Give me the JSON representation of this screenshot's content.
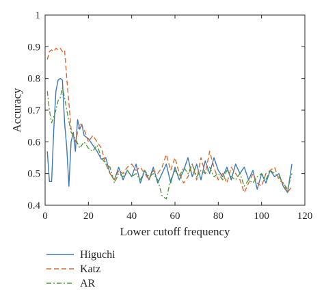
{
  "chart_data": {
    "type": "line",
    "xlabel": "Lower cutoff frequency",
    "ylabel": "Accuracy",
    "xlim": [
      0,
      120
    ],
    "ylim": [
      0.4,
      1.0
    ],
    "xticks": [
      "0",
      "20",
      "40",
      "60",
      "80",
      "100",
      "120"
    ],
    "yticks": [
      "0.4",
      "0.5",
      "0.6",
      "0.7",
      "0.8",
      "0.9",
      "1"
    ],
    "grid": false,
    "legend_position": "below",
    "series": [
      {
        "name": "Higuchi",
        "color": "#3a78b8",
        "style": "solid",
        "points": [
          [
            1,
            0.57
          ],
          [
            2,
            0.475
          ],
          [
            3,
            0.475
          ],
          [
            4,
            0.64
          ],
          [
            5,
            0.76
          ],
          [
            6,
            0.795
          ],
          [
            7,
            0.8
          ],
          [
            8,
            0.795
          ],
          [
            9,
            0.66
          ],
          [
            10,
            0.58
          ],
          [
            11,
            0.46
          ],
          [
            12,
            0.6
          ],
          [
            13,
            0.63
          ],
          [
            14,
            0.57
          ],
          [
            15,
            0.67
          ],
          [
            16,
            0.64
          ],
          [
            17,
            0.655
          ],
          [
            18,
            0.62
          ],
          [
            20,
            0.61
          ],
          [
            22,
            0.59
          ],
          [
            24,
            0.57
          ],
          [
            26,
            0.545
          ],
          [
            28,
            0.55
          ],
          [
            30,
            0.5
          ],
          [
            32,
            0.48
          ],
          [
            34,
            0.52
          ],
          [
            36,
            0.48
          ],
          [
            38,
            0.51
          ],
          [
            40,
            0.49
          ],
          [
            42,
            0.53
          ],
          [
            44,
            0.47
          ],
          [
            46,
            0.51
          ],
          [
            48,
            0.48
          ],
          [
            50,
            0.52
          ],
          [
            52,
            0.47
          ],
          [
            54,
            0.5
          ],
          [
            56,
            0.53
          ],
          [
            58,
            0.47
          ],
          [
            60,
            0.52
          ],
          [
            62,
            0.48
          ],
          [
            64,
            0.51
          ],
          [
            66,
            0.55
          ],
          [
            68,
            0.49
          ],
          [
            70,
            0.53
          ],
          [
            72,
            0.48
          ],
          [
            74,
            0.54
          ],
          [
            76,
            0.5
          ],
          [
            78,
            0.55
          ],
          [
            80,
            0.51
          ],
          [
            82,
            0.49
          ],
          [
            84,
            0.52
          ],
          [
            86,
            0.48
          ],
          [
            88,
            0.53
          ],
          [
            90,
            0.5
          ],
          [
            92,
            0.52
          ],
          [
            94,
            0.48
          ],
          [
            96,
            0.51
          ],
          [
            98,
            0.45
          ],
          [
            100,
            0.5
          ],
          [
            102,
            0.47
          ],
          [
            104,
            0.51
          ],
          [
            106,
            0.49
          ],
          [
            108,
            0.5
          ],
          [
            110,
            0.46
          ],
          [
            112,
            0.44
          ],
          [
            114,
            0.53
          ]
        ]
      },
      {
        "name": "Katz",
        "color": "#d96a2b",
        "style": "dashed",
        "points": [
          [
            1,
            0.86
          ],
          [
            2,
            0.885
          ],
          [
            3,
            0.89
          ],
          [
            4,
            0.885
          ],
          [
            5,
            0.895
          ],
          [
            6,
            0.89
          ],
          [
            7,
            0.895
          ],
          [
            8,
            0.885
          ],
          [
            9,
            0.89
          ],
          [
            10,
            0.8
          ],
          [
            12,
            0.64
          ],
          [
            14,
            0.6
          ],
          [
            16,
            0.66
          ],
          [
            18,
            0.64
          ],
          [
            20,
            0.6
          ],
          [
            22,
            0.62
          ],
          [
            24,
            0.6
          ],
          [
            26,
            0.58
          ],
          [
            28,
            0.53
          ],
          [
            30,
            0.5
          ],
          [
            32,
            0.48
          ],
          [
            34,
            0.51
          ],
          [
            36,
            0.5
          ],
          [
            38,
            0.52
          ],
          [
            40,
            0.53
          ],
          [
            42,
            0.51
          ],
          [
            44,
            0.52
          ],
          [
            46,
            0.5
          ],
          [
            48,
            0.48
          ],
          [
            50,
            0.51
          ],
          [
            52,
            0.5
          ],
          [
            54,
            0.52
          ],
          [
            56,
            0.56
          ],
          [
            58,
            0.51
          ],
          [
            60,
            0.55
          ],
          [
            62,
            0.5
          ],
          [
            64,
            0.47
          ],
          [
            66,
            0.49
          ],
          [
            68,
            0.53
          ],
          [
            70,
            0.48
          ],
          [
            72,
            0.55
          ],
          [
            74,
            0.5
          ],
          [
            76,
            0.57
          ],
          [
            78,
            0.52
          ],
          [
            80,
            0.48
          ],
          [
            82,
            0.5
          ],
          [
            84,
            0.47
          ],
          [
            86,
            0.52
          ],
          [
            88,
            0.5
          ],
          [
            90,
            0.48
          ],
          [
            92,
            0.44
          ],
          [
            94,
            0.47
          ],
          [
            96,
            0.5
          ],
          [
            98,
            0.47
          ],
          [
            100,
            0.46
          ],
          [
            102,
            0.5
          ],
          [
            104,
            0.51
          ],
          [
            106,
            0.52
          ],
          [
            108,
            0.48
          ],
          [
            110,
            0.47
          ],
          [
            112,
            0.44
          ],
          [
            114,
            0.46
          ]
        ]
      },
      {
        "name": "AR",
        "color": "#4f9a3a",
        "style": "dashdot",
        "points": [
          [
            1,
            0.76
          ],
          [
            2,
            0.7
          ],
          [
            3,
            0.66
          ],
          [
            4,
            0.68
          ],
          [
            5,
            0.7
          ],
          [
            6,
            0.73
          ],
          [
            7,
            0.74
          ],
          [
            8,
            0.77
          ],
          [
            9,
            0.74
          ],
          [
            10,
            0.7
          ],
          [
            12,
            0.63
          ],
          [
            14,
            0.61
          ],
          [
            16,
            0.58
          ],
          [
            18,
            0.6
          ],
          [
            20,
            0.58
          ],
          [
            22,
            0.57
          ],
          [
            24,
            0.59
          ],
          [
            26,
            0.55
          ],
          [
            28,
            0.53
          ],
          [
            30,
            0.52
          ],
          [
            32,
            0.47
          ],
          [
            34,
            0.5
          ],
          [
            36,
            0.49
          ],
          [
            38,
            0.51
          ],
          [
            40,
            0.49
          ],
          [
            42,
            0.5
          ],
          [
            44,
            0.48
          ],
          [
            46,
            0.51
          ],
          [
            48,
            0.49
          ],
          [
            50,
            0.5
          ],
          [
            52,
            0.48
          ],
          [
            54,
            0.43
          ],
          [
            56,
            0.42
          ],
          [
            58,
            0.48
          ],
          [
            60,
            0.51
          ],
          [
            62,
            0.49
          ],
          [
            64,
            0.52
          ],
          [
            66,
            0.5
          ],
          [
            68,
            0.53
          ],
          [
            70,
            0.49
          ],
          [
            72,
            0.51
          ],
          [
            74,
            0.5
          ],
          [
            76,
            0.52
          ],
          [
            78,
            0.49
          ],
          [
            80,
            0.5
          ],
          [
            82,
            0.48
          ],
          [
            84,
            0.51
          ],
          [
            86,
            0.49
          ],
          [
            88,
            0.48
          ],
          [
            90,
            0.5
          ],
          [
            92,
            0.46
          ],
          [
            94,
            0.48
          ],
          [
            96,
            0.47
          ],
          [
            98,
            0.49
          ],
          [
            100,
            0.5
          ],
          [
            102,
            0.48
          ],
          [
            104,
            0.51
          ],
          [
            106,
            0.5
          ],
          [
            108,
            0.49
          ],
          [
            110,
            0.47
          ],
          [
            112,
            0.45
          ],
          [
            114,
            0.5
          ]
        ]
      }
    ]
  }
}
